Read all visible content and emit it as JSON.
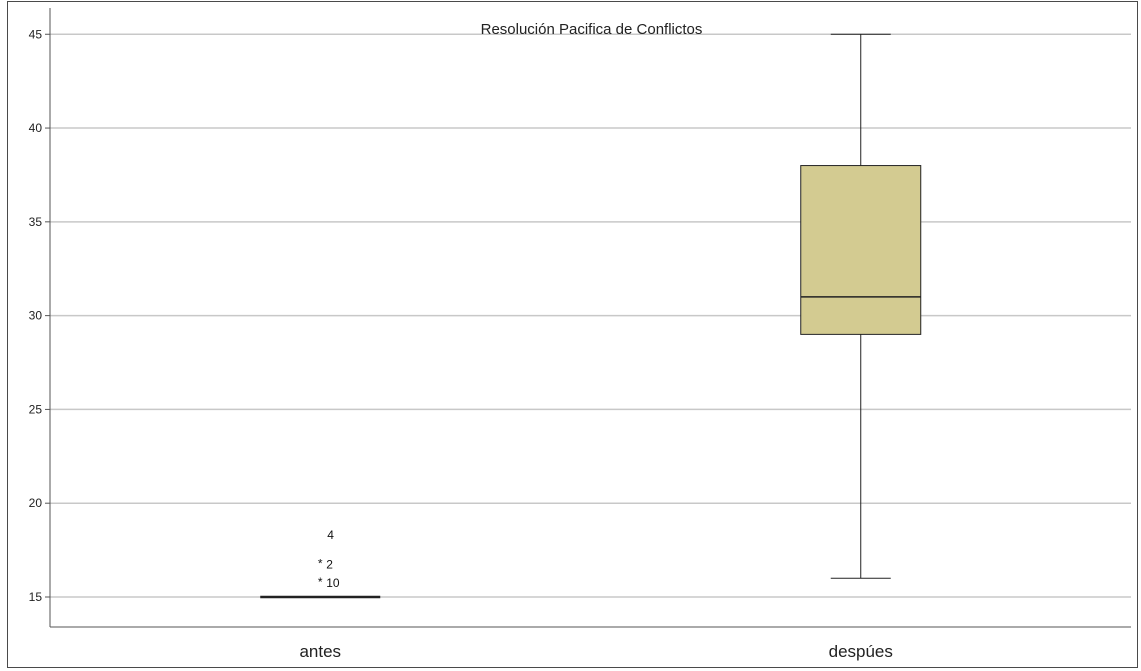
{
  "chart_data": {
    "type": "boxplot",
    "title": "Resolución Pacifica de Conflictos",
    "xlabel": "",
    "ylabel": "",
    "ylim": [
      13.4,
      46.4
    ],
    "yticks": [
      15,
      20,
      25,
      30,
      35,
      40,
      45
    ],
    "grid": true,
    "colors": {
      "box_fill": "#d3cb91",
      "gridline": "#c8c8c8",
      "stroke": "#222222"
    },
    "categories": [
      "antes",
      "despúes"
    ],
    "boxes": [
      {
        "category": "antes",
        "min": 15,
        "q1": 15,
        "median": 15,
        "q3": 15,
        "max": 15,
        "outliers": [
          {
            "label": "4",
            "value": 18.3,
            "marker": "none"
          },
          {
            "label": "2",
            "value": 17,
            "marker": "*"
          },
          {
            "label": "10",
            "value": 16,
            "marker": "*"
          }
        ]
      },
      {
        "category": "despúes",
        "min": 16,
        "q1": 29,
        "median": 31,
        "q3": 38,
        "max": 45,
        "outliers": []
      }
    ]
  }
}
